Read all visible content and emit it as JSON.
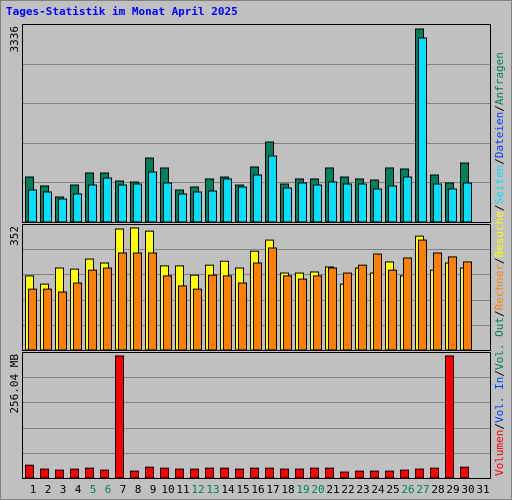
{
  "title": "Tages-Statistik im Monat April 2025",
  "legend_separator": "/",
  "chart_data": [
    {
      "type": "bar",
      "ylim": [
        0,
        3336
      ],
      "yticks": [
        3336
      ],
      "series": [
        {
          "name": "Anfragen",
          "color": "#00805c",
          "values": [
            758,
            607,
            421,
            623,
            826,
            826,
            691,
            674,
            1078,
            910,
            539,
            590,
            725,
            758,
            623,
            927,
            1348,
            640,
            725,
            725,
            910,
            758,
            725,
            708,
            910,
            893,
            3252,
            792,
            657,
            994,
            null
          ]
        },
        {
          "name": "Dateien",
          "color": "#0040ff"
        },
        {
          "name": "Seiten",
          "color": "#00e0ff",
          "values": [
            539,
            505,
            388,
            472,
            623,
            741,
            623,
            640,
            842,
            657,
            472,
            505,
            522,
            725,
            590,
            792,
            1112,
            573,
            657,
            623,
            674,
            640,
            640,
            556,
            607,
            758,
            3100,
            640,
            556,
            657,
            null
          ]
        }
      ]
    },
    {
      "type": "bar",
      "ylim": [
        0,
        352
      ],
      "yticks": [
        352
      ],
      "series": [
        {
          "name": "Besuche",
          "color": "#ffff00",
          "values": [
            207,
            184,
            229,
            226,
            254,
            243,
            338,
            341,
            332,
            235,
            235,
            209,
            237,
            248,
            229,
            276,
            307,
            215,
            215,
            218,
            232,
            184,
            229,
            215,
            246,
            207,
            318,
            223,
            243,
            229,
            null
          ]
        },
        {
          "name": "Rechner",
          "color": "#ff8000",
          "values": [
            170,
            170,
            162,
            187,
            223,
            229,
            271,
            271,
            271,
            207,
            179,
            170,
            209,
            207,
            187,
            243,
            285,
            207,
            198,
            207,
            229,
            215,
            237,
            268,
            223,
            257,
            307,
            271,
            260,
            246,
            null
          ]
        }
      ]
    },
    {
      "type": "bar",
      "ylim": [
        0,
        256.04
      ],
      "yticks": [
        {
          "value": 256.04,
          "label": "256.04 MB"
        }
      ],
      "categories": [
        "1",
        "2",
        "3",
        "4",
        "5",
        "6",
        "7",
        "8",
        "9",
        "10",
        "11",
        "12",
        "13",
        "14",
        "15",
        "16",
        "17",
        "18",
        "19",
        "20",
        "21",
        "22",
        "23",
        "24",
        "25",
        "26",
        "27",
        "28",
        "29",
        "30",
        "31"
      ],
      "highlight_categories": [
        4,
        5,
        11,
        12,
        18,
        19,
        25,
        26
      ],
      "highlight_color": "#00805c",
      "series": [
        {
          "name": "Vol. Out",
          "color": "#00805c"
        },
        {
          "name": "Vol. In",
          "color": "#0040ff"
        },
        {
          "name": "Volumen",
          "color": "#ff0000",
          "values": [
            26,
            18,
            16,
            18,
            20,
            16,
            248,
            14,
            22,
            20,
            18,
            18,
            20,
            20,
            18,
            20,
            20,
            18,
            18,
            20,
            20,
            12,
            14,
            14,
            14,
            16,
            18,
            20,
            248,
            22,
            null
          ]
        }
      ]
    }
  ]
}
